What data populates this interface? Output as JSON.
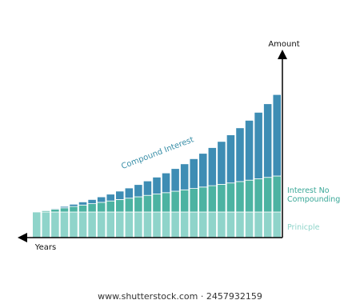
{
  "chart_data": {
    "type": "stacked-bar",
    "x_label": "Years",
    "y_label": "Amount",
    "categories": [
      null,
      null,
      null,
      null,
      null,
      null,
      null,
      null,
      null,
      null,
      null,
      null,
      null,
      null,
      null,
      null,
      null,
      null,
      null,
      null,
      null,
      null,
      null,
      null,
      null,
      null,
      null
    ],
    "series": [
      {
        "name": "Prinicple",
        "color": "#8fd4ca",
        "label_color": "#8fd4ca",
        "values": [
          32,
          32,
          32,
          32,
          32,
          32,
          32,
          32,
          32,
          32,
          32,
          32,
          32,
          32,
          32,
          32,
          32,
          32,
          32,
          32,
          32,
          32,
          32,
          32,
          32,
          32,
          32
        ]
      },
      {
        "name": "Interest No Compounding",
        "color": "#4cb3a2",
        "label_color": "#3aa898",
        "values": [
          0,
          1.7,
          3.5,
          5.2,
          6.9,
          8.7,
          10.4,
          12.1,
          13.8,
          15.6,
          17.3,
          19.0,
          20.8,
          22.5,
          24.2,
          26.0,
          27.7,
          29.4,
          31.2,
          32.9,
          34.6,
          36.3,
          38.1,
          39.8,
          41.5,
          43.3,
          45.0
        ]
      },
      {
        "name": "Compound Interest",
        "color": "#3e8db4",
        "label_color": "#3a8fa8",
        "values": [
          0,
          0.5,
          1.0,
          1.8,
          2.8,
          3.9,
          5.2,
          6.8,
          8.5,
          10.5,
          12.7,
          15.3,
          18.0,
          21.1,
          24.6,
          28.3,
          32.5,
          37.2,
          42.1,
          47.6,
          53.6,
          60.1,
          67.1,
          74.8,
          83.1,
          92.0,
          101.8
        ]
      }
    ],
    "ylim": [
      0,
      232
    ]
  },
  "footer": "www.shutterstock.com · 2457932159"
}
